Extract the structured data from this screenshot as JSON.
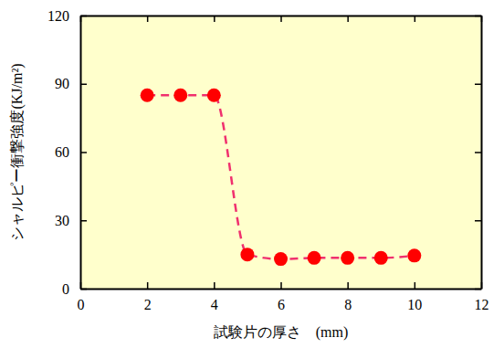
{
  "chart_data": {
    "type": "line",
    "x_label": "試験片の厚さ　(mm)",
    "y_label": "シャルピー衝撃強度(KJ/m²)",
    "x": [
      2,
      3,
      4,
      5,
      6,
      7,
      8,
      9,
      10
    ],
    "values": [
      85,
      85,
      85,
      15,
      13,
      13.5,
      13.5,
      13.5,
      14.5
    ],
    "color": "#ff0000",
    "marker": "circle",
    "line_style": "dashed",
    "xlim": [
      0,
      12
    ],
    "xticks": [
      0,
      2,
      4,
      6,
      8,
      10,
      12
    ],
    "ylim": [
      0,
      120
    ],
    "yticks": [
      0,
      30,
      60,
      90,
      120
    ],
    "grid": false
  }
}
